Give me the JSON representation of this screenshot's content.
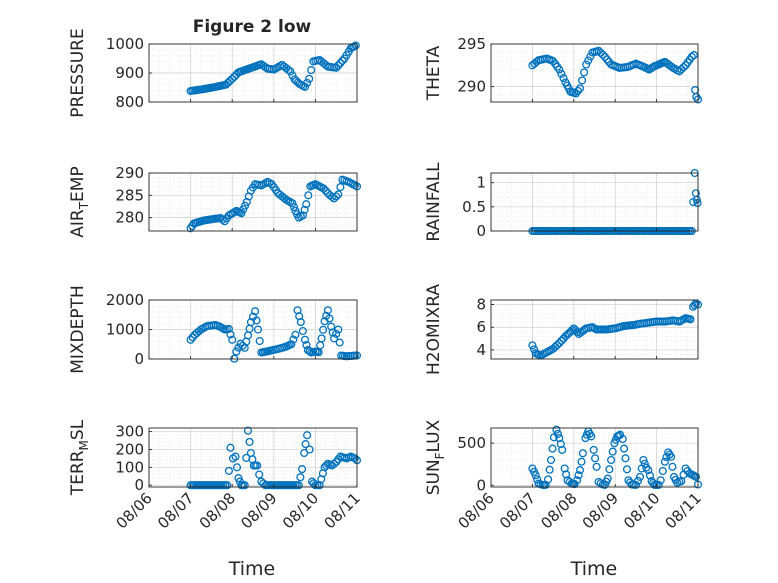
{
  "figure": {
    "title": "Figure 2 low",
    "xlabel": "Time",
    "xtick_labels": [
      "08/06",
      "08/07",
      "08/08",
      "08/09",
      "08/10",
      "08/11"
    ],
    "marker_color": "#0072BD",
    "grid": "on (major + minor, dotted)"
  },
  "chart_data": [
    {
      "type": "scatter",
      "name": "pressure",
      "ylabel": "PRESSURE",
      "ylim": [
        800,
        1000
      ],
      "yticks": [
        800,
        900,
        1000
      ],
      "xlim": [
        "08/06",
        "08/11"
      ],
      "keys": [
        [
          7.0,
          838
        ],
        [
          7.3,
          844
        ],
        [
          7.6,
          852
        ],
        [
          7.85,
          860
        ],
        [
          8.0,
          880
        ],
        [
          8.15,
          902
        ],
        [
          8.4,
          915
        ],
        [
          8.7,
          930
        ],
        [
          8.85,
          915
        ],
        [
          9.0,
          912
        ],
        [
          9.2,
          928
        ],
        [
          9.4,
          905
        ],
        [
          9.5,
          878
        ],
        [
          9.62,
          862
        ],
        [
          9.75,
          852
        ],
        [
          9.85,
          880
        ],
        [
          9.95,
          940
        ],
        [
          10.1,
          945
        ],
        [
          10.3,
          922
        ],
        [
          10.5,
          918
        ],
        [
          10.7,
          950
        ],
        [
          10.85,
          985
        ],
        [
          10.97,
          995
        ]
      ]
    },
    {
      "type": "scatter",
      "name": "theta",
      "ylabel": "THETA",
      "ylim": [
        288.2,
        295
      ],
      "yticks": [
        290,
        295
      ],
      "xlim": [
        "08/06",
        "08/11"
      ],
      "keys": [
        [
          7.0,
          292.5
        ],
        [
          7.15,
          293.1
        ],
        [
          7.35,
          293.3
        ],
        [
          7.5,
          293.0
        ],
        [
          7.65,
          292.0
        ],
        [
          7.8,
          290.5
        ],
        [
          7.92,
          289.4
        ],
        [
          8.05,
          289.2
        ],
        [
          8.15,
          289.8
        ],
        [
          8.3,
          292.6
        ],
        [
          8.45,
          294.0
        ],
        [
          8.6,
          294.2
        ],
        [
          8.75,
          293.5
        ],
        [
          8.9,
          292.6
        ],
        [
          9.1,
          292.2
        ],
        [
          9.3,
          292.3
        ],
        [
          9.5,
          292.7
        ],
        [
          9.7,
          292.3
        ],
        [
          9.82,
          292.0
        ],
        [
          9.95,
          292.4
        ],
        [
          10.2,
          292.9
        ],
        [
          10.4,
          292.2
        ],
        [
          10.55,
          291.8
        ],
        [
          10.7,
          292.5
        ],
        [
          10.85,
          293.5
        ],
        [
          10.9,
          293.7
        ],
        [
          10.93,
          289.6
        ],
        [
          10.96,
          288.8
        ],
        [
          11.0,
          288.5
        ]
      ]
    },
    {
      "type": "scatter",
      "name": "air_temp",
      "ylabel": "AIR_T EMP",
      "ylim": [
        277,
        290
      ],
      "yticks": [
        280,
        285,
        290
      ],
      "xlim": [
        "08/06",
        "08/11"
      ],
      "keys": [
        [
          7.0,
          277.6
        ],
        [
          7.08,
          278.7
        ],
        [
          7.3,
          279.3
        ],
        [
          7.55,
          279.7
        ],
        [
          7.72,
          279.9
        ],
        [
          7.82,
          279.2
        ],
        [
          7.92,
          280.5
        ],
        [
          8.1,
          281.5
        ],
        [
          8.22,
          281.0
        ],
        [
          8.35,
          283.5
        ],
        [
          8.45,
          286.0
        ],
        [
          8.55,
          287.5
        ],
        [
          8.7,
          287.2
        ],
        [
          8.85,
          288.0
        ],
        [
          8.95,
          287.5
        ],
        [
          9.1,
          285.5
        ],
        [
          9.3,
          284.0
        ],
        [
          9.45,
          283.2
        ],
        [
          9.52,
          281.5
        ],
        [
          9.6,
          280.0
        ],
        [
          9.7,
          280.5
        ],
        [
          9.78,
          283.0
        ],
        [
          9.88,
          287.0
        ],
        [
          10.0,
          287.5
        ],
        [
          10.2,
          286.5
        ],
        [
          10.35,
          285.0
        ],
        [
          10.45,
          284.3
        ],
        [
          10.55,
          285.2
        ],
        [
          10.65,
          288.5
        ],
        [
          10.8,
          288.0
        ],
        [
          10.9,
          287.5
        ],
        [
          11.0,
          287.0
        ]
      ]
    },
    {
      "type": "scatter",
      "name": "rainfall",
      "ylabel": "RAINFALL",
      "ylim": [
        0,
        1.2
      ],
      "yticks": [
        0,
        0.5,
        1
      ],
      "xlim": [
        "08/06",
        "08/11"
      ],
      "keys": [
        [
          7.0,
          0
        ],
        [
          10.85,
          0
        ],
        [
          10.92,
          1.2
        ],
        [
          10.95,
          0.78
        ],
        [
          10.97,
          0.65
        ],
        [
          10.99,
          0.58
        ]
      ]
    },
    {
      "type": "scatter",
      "name": "mixdepth",
      "ylabel": "MIXDEPTH",
      "ylim": [
        0,
        2000
      ],
      "yticks": [
        0,
        1000,
        2000
      ],
      "xlim": [
        "08/06",
        "08/11"
      ],
      "keys": [
        [
          7.0,
          650
        ],
        [
          7.1,
          820
        ],
        [
          7.25,
          1000
        ],
        [
          7.4,
          1120
        ],
        [
          7.6,
          1150
        ],
        [
          7.7,
          1100
        ],
        [
          7.82,
          1000
        ],
        [
          7.92,
          1020
        ],
        [
          8.0,
          650
        ],
        [
          8.05,
          10
        ],
        [
          8.1,
          250
        ],
        [
          8.2,
          520
        ],
        [
          8.3,
          380
        ],
        [
          8.38,
          800
        ],
        [
          8.45,
          1250
        ],
        [
          8.55,
          1620
        ],
        [
          8.62,
          1000
        ],
        [
          8.7,
          220
        ],
        [
          8.82,
          250
        ],
        [
          9.0,
          310
        ],
        [
          9.15,
          360
        ],
        [
          9.3,
          420
        ],
        [
          9.42,
          500
        ],
        [
          9.52,
          820
        ],
        [
          9.57,
          1650
        ],
        [
          9.65,
          1250
        ],
        [
          9.75,
          650
        ],
        [
          9.82,
          300
        ],
        [
          9.9,
          220
        ],
        [
          10.0,
          250
        ],
        [
          10.08,
          230
        ],
        [
          10.15,
          700
        ],
        [
          10.22,
          1280
        ],
        [
          10.3,
          1650
        ],
        [
          10.38,
          1100
        ],
        [
          10.45,
          700
        ],
        [
          10.55,
          1000
        ],
        [
          10.62,
          120
        ],
        [
          10.75,
          90
        ],
        [
          10.9,
          110
        ],
        [
          11.0,
          120
        ]
      ]
    },
    {
      "type": "scatter",
      "name": "h2omixra",
      "ylabel": "H2OMIXRA",
      "ylim": [
        3.2,
        8.4
      ],
      "yticks": [
        4,
        6,
        8
      ],
      "xlim": [
        "08/06",
        "08/11"
      ],
      "keys": [
        [
          7.0,
          4.4
        ],
        [
          7.08,
          3.7
        ],
        [
          7.2,
          3.5
        ],
        [
          7.35,
          3.8
        ],
        [
          7.5,
          4.1
        ],
        [
          7.65,
          4.6
        ],
        [
          7.8,
          5.2
        ],
        [
          7.92,
          5.6
        ],
        [
          8.0,
          5.9
        ],
        [
          8.12,
          5.4
        ],
        [
          8.3,
          5.9
        ],
        [
          8.45,
          6.0
        ],
        [
          8.55,
          5.8
        ],
        [
          8.8,
          5.8
        ],
        [
          9.0,
          5.9
        ],
        [
          9.2,
          6.1
        ],
        [
          9.45,
          6.2
        ],
        [
          9.6,
          6.3
        ],
        [
          9.8,
          6.4
        ],
        [
          10.0,
          6.5
        ],
        [
          10.2,
          6.5
        ],
        [
          10.4,
          6.6
        ],
        [
          10.55,
          6.5
        ],
        [
          10.7,
          6.8
        ],
        [
          10.82,
          6.7
        ],
        [
          10.88,
          7.8
        ],
        [
          10.95,
          8.1
        ],
        [
          11.0,
          8.0
        ]
      ]
    },
    {
      "type": "scatter",
      "name": "terr_msl",
      "ylabel": "TERR_MSL",
      "ylim": [
        -10,
        320
      ],
      "yticks": [
        0,
        100,
        200,
        300
      ],
      "xlim": [
        "08/06",
        "08/11"
      ],
      "keys": [
        [
          7.0,
          0
        ],
        [
          7.88,
          0
        ],
        [
          7.92,
          80
        ],
        [
          7.96,
          210
        ],
        [
          8.02,
          150
        ],
        [
          8.08,
          160
        ],
        [
          8.15,
          40
        ],
        [
          8.22,
          0
        ],
        [
          8.3,
          0
        ],
        [
          8.38,
          305
        ],
        [
          8.45,
          180
        ],
        [
          8.52,
          110
        ],
        [
          8.6,
          110
        ],
        [
          8.65,
          60
        ],
        [
          8.7,
          20
        ],
        [
          8.8,
          0
        ],
        [
          9.6,
          0
        ],
        [
          9.68,
          90
        ],
        [
          9.73,
          180
        ],
        [
          9.8,
          280
        ],
        [
          9.86,
          200
        ],
        [
          9.92,
          20
        ],
        [
          10.0,
          0
        ],
        [
          10.1,
          0
        ],
        [
          10.22,
          100
        ],
        [
          10.3,
          120
        ],
        [
          10.4,
          110
        ],
        [
          10.5,
          130
        ],
        [
          10.6,
          160
        ],
        [
          10.75,
          150
        ],
        [
          10.85,
          160
        ],
        [
          10.95,
          150
        ],
        [
          11.0,
          140
        ]
      ]
    },
    {
      "type": "scatter",
      "name": "sun_flux",
      "ylabel": "SUN_F LUX",
      "ylim": [
        -20,
        680
      ],
      "yticks": [
        0,
        500
      ],
      "xlim": [
        "08/06",
        "08/11"
      ],
      "keys": [
        [
          7.0,
          200
        ],
        [
          7.08,
          120
        ],
        [
          7.15,
          20
        ],
        [
          7.25,
          5
        ],
        [
          7.32,
          5
        ],
        [
          7.38,
          70
        ],
        [
          7.45,
          300
        ],
        [
          7.52,
          570
        ],
        [
          7.58,
          660
        ],
        [
          7.65,
          560
        ],
        [
          7.72,
          420
        ],
        [
          7.78,
          200
        ],
        [
          7.85,
          60
        ],
        [
          7.95,
          20
        ],
        [
          8.02,
          15
        ],
        [
          8.08,
          60
        ],
        [
          8.15,
          180
        ],
        [
          8.22,
          380
        ],
        [
          8.28,
          560
        ],
        [
          8.35,
          640
        ],
        [
          8.42,
          580
        ],
        [
          8.48,
          420
        ],
        [
          8.55,
          220
        ],
        [
          8.6,
          40
        ],
        [
          8.7,
          10
        ],
        [
          8.75,
          5
        ],
        [
          8.82,
          80
        ],
        [
          8.9,
          300
        ],
        [
          8.98,
          500
        ],
        [
          9.05,
          580
        ],
        [
          9.12,
          600
        ],
        [
          9.18,
          550
        ],
        [
          9.25,
          320
        ],
        [
          9.32,
          60
        ],
        [
          9.4,
          10
        ],
        [
          9.5,
          5
        ],
        [
          9.6,
          100
        ],
        [
          9.68,
          300
        ],
        [
          9.75,
          210
        ],
        [
          9.8,
          180
        ],
        [
          9.88,
          50
        ],
        [
          9.95,
          5
        ],
        [
          10.05,
          5
        ],
        [
          10.1,
          60
        ],
        [
          10.2,
          280
        ],
        [
          10.28,
          390
        ],
        [
          10.35,
          340
        ],
        [
          10.42,
          100
        ],
        [
          10.5,
          30
        ],
        [
          10.6,
          50
        ],
        [
          10.7,
          200
        ],
        [
          10.8,
          140
        ],
        [
          10.88,
          120
        ],
        [
          10.95,
          100
        ],
        [
          11.0,
          10
        ]
      ]
    }
  ]
}
